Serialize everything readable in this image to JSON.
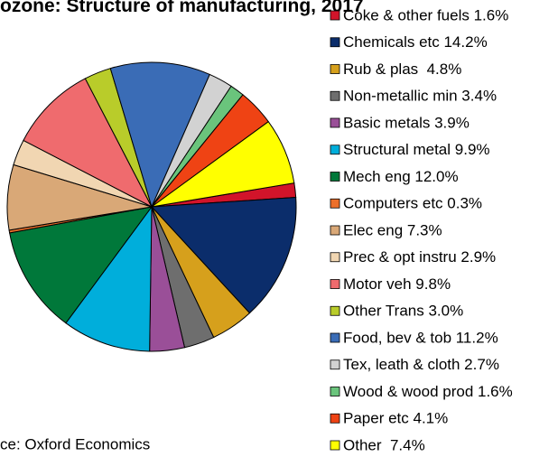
{
  "chart_data": {
    "type": "pie",
    "title": "ozone: Structure of manufacturing, 2017",
    "source": "ce: Oxford Economics",
    "categories": [
      "Coke & other fuels 1.6%",
      "Chemicals etc 14.2%",
      "Rub & plas  4.8%",
      "Non-metallic min 3.4%",
      "Basic metals 3.9%",
      "Structural metal 9.9%",
      "Mech eng 12.0%",
      "Computers etc 0.3%",
      "Elec eng 7.3%",
      "Prec & opt instru 2.9%",
      "Motor veh 9.8%",
      "Other Trans 3.0%",
      "Food, bev & tob 11.2%",
      "Tex, leath & cloth 2.7%",
      "Wood & wood prod 1.6%",
      "Paper etc 4.1%",
      "Other  7.4%"
    ],
    "values": [
      1.6,
      14.2,
      4.8,
      3.4,
      3.9,
      9.9,
      12.0,
      0.3,
      7.3,
      2.9,
      9.8,
      3.0,
      11.2,
      2.7,
      1.6,
      4.1,
      7.4
    ],
    "colors": [
      "#d2142a",
      "#0b2d6b",
      "#d6a01c",
      "#6e6e6e",
      "#9a4f98",
      "#00aedb",
      "#00783a",
      "#ec6f2a",
      "#d9a877",
      "#f1d6b2",
      "#ef6b6e",
      "#b9cc2a",
      "#3a6cb6",
      "#d2d2d2",
      "#6ac47c",
      "#ef4314",
      "#ffff00"
    ],
    "legend": "right"
  }
}
